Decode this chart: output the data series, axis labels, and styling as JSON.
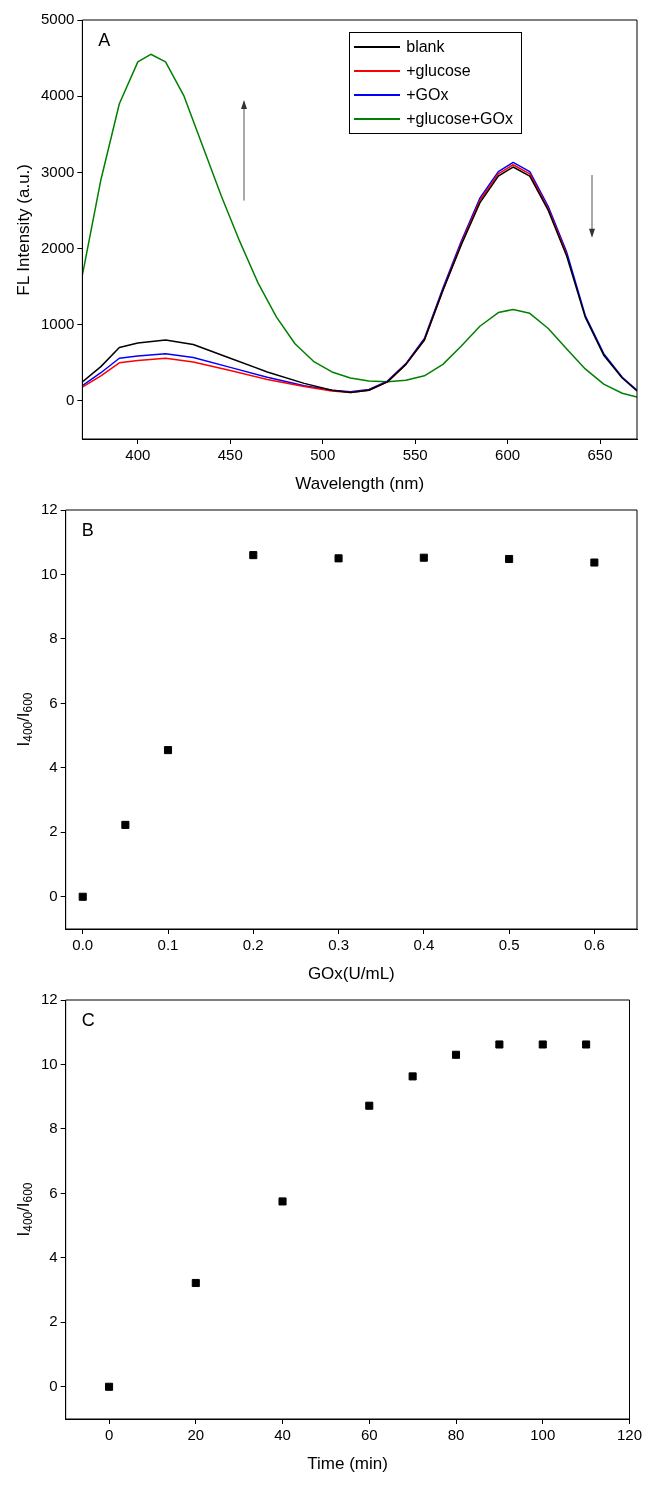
{
  "chart_data": [
    {
      "type": "line",
      "title": "A",
      "xlabel": "Wavelength (nm)",
      "ylabel": "FL Intensity (a.u.)",
      "xlim": [
        370,
        670
      ],
      "xticks": [
        400,
        450,
        500,
        550,
        600,
        650
      ],
      "ylim": [
        -500,
        5000
      ],
      "yticks": [
        0,
        1000,
        2000,
        3000,
        4000,
        5000
      ],
      "grid": false,
      "legend": "top right",
      "line_style": "solid",
      "series": [
        {
          "name": "blank",
          "color": "#000000",
          "x": [
            370,
            380,
            390,
            400,
            415,
            430,
            450,
            470,
            490,
            505,
            515,
            525,
            535,
            545,
            555,
            565,
            575,
            585,
            595,
            603,
            612,
            622,
            632,
            642,
            652,
            662,
            670
          ],
          "values": [
            250,
            450,
            700,
            760,
            800,
            740,
            560,
            380,
            230,
            140,
            110,
            140,
            250,
            480,
            800,
            1450,
            2050,
            2600,
            2950,
            3070,
            2950,
            2500,
            1900,
            1100,
            600,
            300,
            130
          ]
        },
        {
          "name": "+glucose",
          "color": "#ff0000",
          "x": [
            370,
            380,
            390,
            400,
            415,
            430,
            450,
            470,
            490,
            505,
            515,
            525,
            535,
            545,
            555,
            565,
            575,
            585,
            595,
            603,
            612,
            622,
            632
          ],
          "values": [
            180,
            330,
            500,
            530,
            560,
            510,
            400,
            280,
            190,
            130,
            110,
            140,
            250,
            480,
            800,
            1450,
            2070,
            2630,
            2980,
            3100,
            2980,
            2520,
            1920
          ]
        },
        {
          "name": "+GOx",
          "color": "#0000ff",
          "x": [
            370,
            380,
            390,
            400,
            415,
            430,
            450,
            470,
            490,
            505,
            515,
            525,
            535,
            545,
            555,
            565,
            575,
            585,
            595,
            603,
            612,
            622,
            632,
            642,
            652,
            662,
            670
          ],
          "values": [
            200,
            370,
            560,
            590,
            620,
            570,
            440,
            310,
            200,
            140,
            120,
            150,
            260,
            490,
            820,
            1480,
            2100,
            2660,
            3010,
            3130,
            3010,
            2550,
            1950,
            1120,
            620,
            310,
            140
          ]
        },
        {
          "name": "+glucose+GOx",
          "color": "#008000",
          "x": [
            370,
            380,
            390,
            400,
            407,
            415,
            425,
            435,
            445,
            455,
            465,
            475,
            485,
            495,
            505,
            515,
            525,
            535,
            545,
            555,
            565,
            575,
            585,
            595,
            603,
            612,
            622,
            632,
            642,
            652,
            662,
            670
          ],
          "values": [
            1650,
            2900,
            3900,
            4450,
            4550,
            4450,
            4000,
            3350,
            2700,
            2100,
            1550,
            1100,
            750,
            520,
            380,
            300,
            260,
            250,
            270,
            330,
            480,
            720,
            980,
            1160,
            1200,
            1150,
            950,
            680,
            420,
            220,
            100,
            50
          ]
        }
      ]
    },
    {
      "type": "scatter",
      "title": "B",
      "xlabel": "GOx(U/mL)",
      "ylabel": "I$_{400}$/I$_{600}$",
      "xlim": [
        -0.02,
        0.65
      ],
      "xticks": [
        {
          "value": 0,
          "label": "0.0"
        },
        0.1,
        0.2,
        0.3,
        0.4,
        0.5,
        0.6
      ],
      "ylim": [
        -1,
        12
      ],
      "yticks": [
        0,
        2,
        4,
        6,
        8,
        10,
        12
      ],
      "grid": false,
      "legend": false,
      "marker": "square",
      "series": [
        {
          "color": "#000000",
          "x": [
            0,
            0.05,
            0.1,
            0.2,
            0.3,
            0.4,
            0.5,
            0.6
          ],
          "values": [
            0,
            2.23,
            4.55,
            10.6,
            10.5,
            10.52,
            10.48,
            10.37
          ]
        }
      ]
    },
    {
      "type": "scatter",
      "title": "C",
      "xlabel": "Time (min)",
      "ylabel": "I$_{400}$/I$_{600}$",
      "xlim": [
        -10,
        120
      ],
      "xticks": [
        0,
        20,
        40,
        60,
        80,
        100,
        120
      ],
      "ylim": [
        -1,
        12
      ],
      "yticks": [
        0,
        2,
        4,
        6,
        8,
        10,
        12
      ],
      "grid": false,
      "legend": false,
      "marker": "square",
      "series": [
        {
          "color": "#000000",
          "x": [
            0,
            20,
            40,
            60,
            70,
            80,
            90,
            100,
            110
          ],
          "values": [
            0,
            3.22,
            5.75,
            8.72,
            9.63,
            10.3,
            10.62,
            10.62,
            10.62
          ]
        }
      ]
    }
  ]
}
